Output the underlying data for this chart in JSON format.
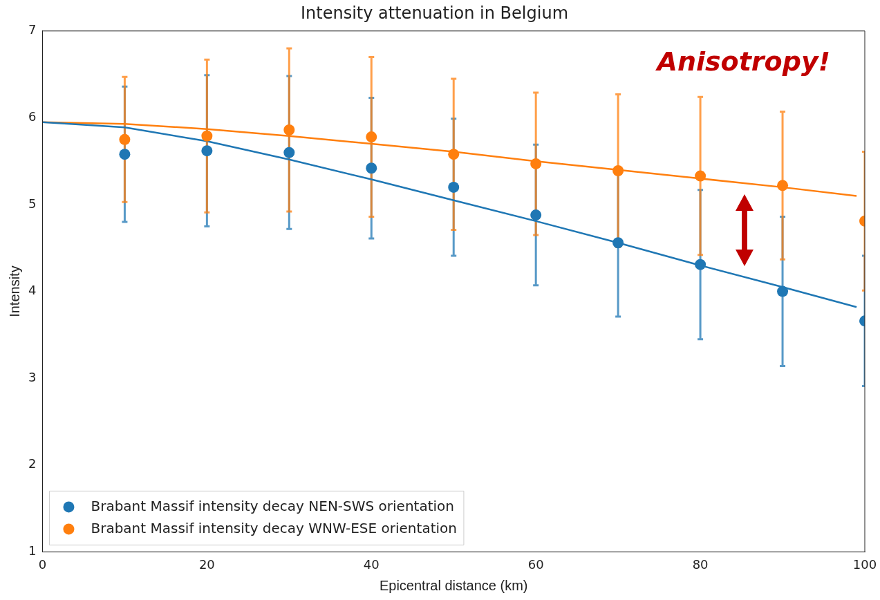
{
  "chart_data": {
    "type": "scatter",
    "title": "Intensity attenuation in Belgium",
    "xlabel": "Epicentral distance (km)",
    "ylabel": "Intensity",
    "x": [
      10,
      20,
      30,
      40,
      50,
      60,
      70,
      80,
      90,
      100
    ],
    "series": [
      {
        "name": "Brabant Massif intensity decay NEN-SWS orientation",
        "color": "#1f77b4",
        "values": [
          5.58,
          5.62,
          5.6,
          5.42,
          5.2,
          4.88,
          4.56,
          4.31,
          4.0,
          3.66
        ],
        "errors": [
          0.78,
          0.87,
          0.88,
          0.81,
          0.79,
          0.81,
          0.85,
          0.86,
          0.86,
          0.75
        ]
      },
      {
        "name": "Brabant Massif intensity decay WNW-ESE orientation",
        "color": "#ff7f0e",
        "values": [
          5.75,
          5.79,
          5.86,
          5.78,
          5.58,
          5.47,
          5.39,
          5.33,
          5.22,
          4.81
        ],
        "errors": [
          0.72,
          0.88,
          0.94,
          0.92,
          0.87,
          0.82,
          0.88,
          0.91,
          0.85,
          0.8
        ]
      },
      {
        "type": "line",
        "marker": "none",
        "color": "#1f77b4",
        "x": [
          0,
          10,
          20,
          30,
          40,
          50,
          60,
          70,
          80,
          90,
          99
        ],
        "values": [
          5.95,
          5.89,
          5.73,
          5.52,
          5.29,
          5.05,
          4.81,
          4.56,
          4.3,
          4.05,
          3.82
        ]
      },
      {
        "type": "line",
        "marker": "none",
        "color": "#ff7f0e",
        "x": [
          0,
          10,
          20,
          30,
          40,
          50,
          60,
          70,
          80,
          90,
          99
        ],
        "values": [
          5.95,
          5.93,
          5.87,
          5.79,
          5.7,
          5.61,
          5.5,
          5.4,
          5.3,
          5.2,
          5.1
        ]
      }
    ],
    "xlim": [
      0,
      100
    ],
    "xticks": [
      0,
      20,
      40,
      60,
      80,
      100
    ],
    "ylim": [
      1,
      7
    ],
    "yticks": [
      1,
      2,
      3,
      4,
      5,
      6,
      7
    ],
    "marker": "circle",
    "legend": "bottom left",
    "annotations": [
      "Anisotropy!"
    ]
  }
}
